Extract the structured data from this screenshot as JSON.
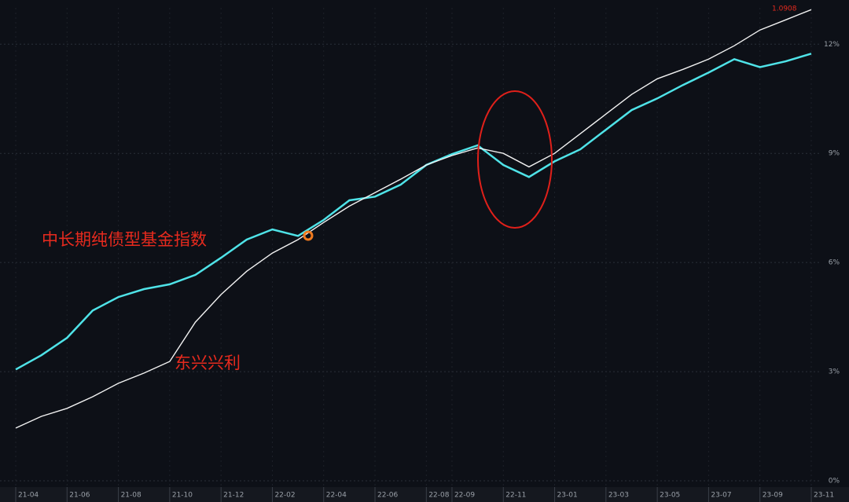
{
  "chart_data": {
    "type": "line",
    "categories": [
      "21-04",
      null,
      "21-06",
      null,
      "21-08",
      null,
      "21-10",
      null,
      "21-12",
      null,
      "22-02",
      null,
      "22-04",
      null,
      "22-06",
      null,
      "22-08",
      "22-09",
      null,
      "22-11",
      null,
      "23-01",
      null,
      "23-03",
      null,
      "23-05",
      null,
      "23-07",
      null,
      "23-09",
      null,
      "23-11"
    ],
    "series": [
      {
        "name": "中长期纯债型基金指数",
        "color": "#4fe3e8",
        "values": [
          3.06,
          3.45,
          3.93,
          4.68,
          5.05,
          5.27,
          5.4,
          5.66,
          6.13,
          6.63,
          6.91,
          6.73,
          7.17,
          7.71,
          7.81,
          8.14,
          8.68,
          8.98,
          9.22,
          8.68,
          8.35,
          8.78,
          9.11,
          9.65,
          10.19,
          10.51,
          10.88,
          11.22,
          11.59,
          11.37,
          11.53,
          11.74
        ]
      },
      {
        "name": "东兴兴利",
        "color": "#f2f2f2",
        "values": [
          1.45,
          1.77,
          1.99,
          2.31,
          2.68,
          2.96,
          3.28,
          4.36,
          5.12,
          5.76,
          6.26,
          6.63,
          7.1,
          7.55,
          7.92,
          8.29,
          8.68,
          8.94,
          9.15,
          9.0,
          8.63,
          9.0,
          9.54,
          10.08,
          10.62,
          11.05,
          11.31,
          11.59,
          11.96,
          12.39,
          12.67,
          12.95
        ]
      }
    ],
    "ylim": [
      0,
      13
    ],
    "yticks": [
      {
        "value": 0,
        "label": "0%"
      },
      {
        "value": 3,
        "label": "3%"
      },
      {
        "value": 6,
        "label": "6%"
      },
      {
        "value": 9,
        "label": "9%"
      },
      {
        "value": 12,
        "label": "12%"
      }
    ],
    "grid": true,
    "end_label": "1.0908"
  }
}
